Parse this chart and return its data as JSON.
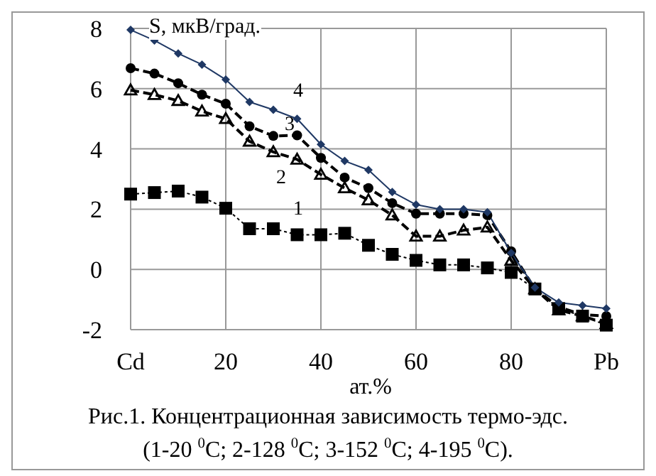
{
  "chart_data": {
    "type": "line",
    "title": "Рис.1. Концентрационная зависимость термо-эдс.",
    "subtitle": "(1-20 $^{0}$C; 2-128 $^{0}$C; 3-152 $^{0}$C; 4-195 $^{0}$C).",
    "xlabel": "ат.%",
    "ylabel": "S, мкВ/град.",
    "x": [
      0,
      5,
      10,
      15,
      20,
      25,
      30,
      35,
      40,
      45,
      50,
      55,
      60,
      65,
      70,
      75,
      80,
      85,
      90,
      95,
      100
    ],
    "series": [
      {
        "name": "1",
        "color": "#000000",
        "marker": "square",
        "line_style": "dotted",
        "values": [
          2.5,
          2.55,
          2.6,
          2.4,
          2.03,
          1.35,
          1.35,
          1.15,
          1.15,
          1.2,
          0.8,
          0.5,
          0.3,
          0.15,
          0.15,
          0.05,
          -0.1,
          -0.65,
          -1.3,
          -1.55,
          -1.85
        ]
      },
      {
        "name": "2",
        "color": "#000000",
        "marker": "triangle",
        "line_style": "dashed",
        "values": [
          5.95,
          5.8,
          5.6,
          5.25,
          5.0,
          4.25,
          3.9,
          3.65,
          3.15,
          2.7,
          2.3,
          1.8,
          1.1,
          1.1,
          1.3,
          1.4,
          0.3,
          -0.65,
          -1.35,
          -1.55,
          -1.8
        ]
      },
      {
        "name": "3",
        "color": "#000000",
        "marker": "circle",
        "line_style": "dashed",
        "values": [
          6.68,
          6.5,
          6.18,
          5.8,
          5.5,
          4.75,
          4.43,
          4.45,
          3.7,
          3.05,
          2.7,
          2.2,
          1.85,
          1.85,
          1.85,
          1.8,
          0.6,
          -0.65,
          -1.25,
          -1.5,
          -1.55
        ]
      },
      {
        "name": "4",
        "color": "#1f3864",
        "marker": "diamond",
        "line_style": "solid",
        "values": [
          7.95,
          7.6,
          7.17,
          6.8,
          6.3,
          5.56,
          5.3,
          5.0,
          4.15,
          3.6,
          3.3,
          2.57,
          2.15,
          2.0,
          2.0,
          1.9,
          0.55,
          -0.6,
          -1.1,
          -1.2,
          -1.3
        ]
      }
    ],
    "xlim": [
      0,
      100
    ],
    "xticks": [
      {
        "value": 0,
        "label": "Cd"
      },
      20,
      40,
      60,
      80,
      {
        "value": 100,
        "label": "Pb"
      }
    ],
    "ylim": [
      -2,
      8
    ],
    "yticks": [
      -2,
      0,
      2,
      4,
      6,
      8
    ],
    "grid": true,
    "legend": false
  }
}
